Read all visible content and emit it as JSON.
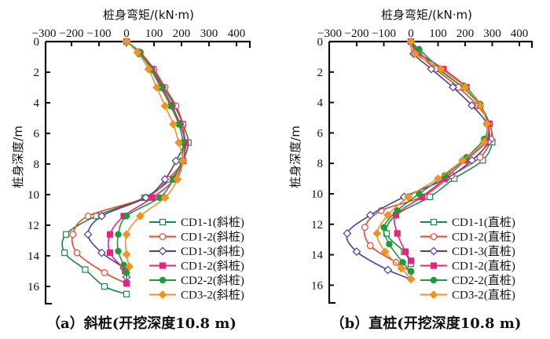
{
  "chart_data": [
    {
      "type": "line",
      "id": "a",
      "caption": "（a）斜桩(开挖深度10.8 m)",
      "xlabel": "桩身弯矩/(kN·m)",
      "ylabel": "桩身深度/m",
      "xlim": [
        -300,
        450
      ],
      "ylim": [
        0,
        17.2
      ],
      "xticks": [
        -300,
        -200,
        -100,
        0,
        100,
        200,
        300,
        400
      ],
      "yticks": [
        0,
        2,
        4,
        6,
        8,
        10,
        12,
        14,
        16
      ],
      "x_axis_position": "top",
      "y_inverted": true,
      "legend_position": "bottom-right",
      "series": [
        {
          "name": "CD1-1(斜桩)",
          "color": "#1a8a4a",
          "marker": "square-open",
          "points": [
            [
              0,
              0
            ],
            [
              50,
              0.8
            ],
            [
              95,
              1.8
            ],
            [
              135,
              3.0
            ],
            [
              175,
              4.2
            ],
            [
              205,
              5.4
            ],
            [
              225,
              6.6
            ],
            [
              205,
              7.8
            ],
            [
              160,
              9.0
            ],
            [
              65,
              10.2
            ],
            [
              -110,
              11.4
            ],
            [
              -220,
              12.6
            ],
            [
              -225,
              13.8
            ],
            [
              -150,
              14.9
            ],
            [
              -80,
              16.0
            ],
            [
              0,
              16.5
            ]
          ]
        },
        {
          "name": "CD1-2(斜桩)",
          "color": "#e8452c",
          "marker": "circle-open",
          "points": [
            [
              0,
              0
            ],
            [
              50,
              0.7
            ],
            [
              100,
              1.8
            ],
            [
              140,
              3.0
            ],
            [
              180,
              4.2
            ],
            [
              205,
              5.4
            ],
            [
              210,
              6.6
            ],
            [
              205,
              7.8
            ],
            [
              150,
              9.0
            ],
            [
              70,
              10.2
            ],
            [
              -140,
              11.4
            ],
            [
              -195,
              12.6
            ],
            [
              -180,
              13.8
            ],
            [
              -80,
              15.1
            ],
            [
              0,
              15.8
            ]
          ]
        },
        {
          "name": "CD1-3(斜桩)",
          "color": "#4a3fa0",
          "marker": "diamond-open",
          "points": [
            [
              0,
              0
            ],
            [
              45,
              0.7
            ],
            [
              90,
              1.8
            ],
            [
              130,
              3.0
            ],
            [
              165,
              4.2
            ],
            [
              195,
              5.4
            ],
            [
              210,
              6.6
            ],
            [
              180,
              7.8
            ],
            [
              140,
              9.0
            ],
            [
              70,
              10.2
            ],
            [
              -90,
              11.4
            ],
            [
              -140,
              12.6
            ],
            [
              -90,
              13.8
            ],
            [
              -10,
              14.8
            ],
            [
              0,
              15.4
            ]
          ]
        },
        {
          "name": "CD1-2(斜桩)",
          "color": "#e8237f",
          "marker": "square-filled",
          "points": [
            [
              0,
              0
            ],
            [
              45,
              0.7
            ],
            [
              92,
              1.8
            ],
            [
              130,
              3.0
            ],
            [
              165,
              4.2
            ],
            [
              195,
              5.4
            ],
            [
              215,
              6.6
            ],
            [
              205,
              7.8
            ],
            [
              175,
              9.0
            ],
            [
              95,
              10.2
            ],
            [
              -10,
              11.4
            ],
            [
              -60,
              12.6
            ],
            [
              -60,
              13.8
            ],
            [
              -5,
              15.0
            ],
            [
              0,
              15.8
            ]
          ]
        },
        {
          "name": "CD2-2(斜桩)",
          "color": "#1f9a3a",
          "marker": "circle-filled",
          "points": [
            [
              0,
              0
            ],
            [
              48,
              0.7
            ],
            [
              88,
              1.8
            ],
            [
              125,
              3.0
            ],
            [
              160,
              4.2
            ],
            [
              190,
              5.4
            ],
            [
              205,
              6.6
            ],
            [
              200,
              7.8
            ],
            [
              170,
              9.0
            ],
            [
              120,
              10.2
            ],
            [
              0,
              11.4
            ],
            [
              -30,
              12.6
            ],
            [
              -30,
              13.7
            ],
            [
              -10,
              14.6
            ],
            [
              0,
              15.1
            ]
          ]
        },
        {
          "name": "CD3-2(斜桩)",
          "color": "#f09225",
          "marker": "diamond-filled",
          "points": [
            [
              0,
              0
            ],
            [
              40,
              0.7
            ],
            [
              80,
              1.8
            ],
            [
              110,
              3.0
            ],
            [
              140,
              4.2
            ],
            [
              170,
              5.4
            ],
            [
              190,
              6.6
            ],
            [
              205,
              7.8
            ],
            [
              185,
              9.0
            ],
            [
              140,
              10.2
            ],
            [
              50,
              11.4
            ],
            [
              0,
              12.6
            ],
            [
              0,
              13.9
            ],
            [
              10,
              14.7
            ]
          ]
        }
      ]
    },
    {
      "type": "line",
      "id": "b",
      "caption": "（b）直桩(开挖深度10.8 m)",
      "xlabel": "桩身弯矩/(kN·m)",
      "ylabel": "桩身深度/m",
      "xlim": [
        -300,
        450
      ],
      "ylim": [
        0,
        17.2
      ],
      "xticks": [
        -300,
        -200,
        -100,
        0,
        100,
        200,
        300,
        400
      ],
      "yticks": [
        0,
        2,
        4,
        6,
        8,
        10,
        12,
        14,
        16
      ],
      "x_axis_position": "top",
      "y_inverted": true,
      "legend_position": "bottom-right",
      "series": [
        {
          "name": "CD1-1(直桩)",
          "color": "#1a8a4a",
          "marker": "square-open",
          "points": [
            [
              0,
              0
            ],
            [
              30,
              0.7
            ],
            [
              100,
              1.8
            ],
            [
              190,
              3.0
            ],
            [
              255,
              4.2
            ],
            [
              290,
              5.4
            ],
            [
              300,
              6.6
            ],
            [
              265,
              7.8
            ],
            [
              160,
              9.0
            ],
            [
              70,
              10.2
            ],
            [
              -55,
              11.4
            ],
            [
              -90,
              12.6
            ],
            [
              -25,
              13.8
            ],
            [
              0,
              14.6
            ]
          ]
        },
        {
          "name": "CD1-2(直桩)",
          "color": "#e8452c",
          "marker": "circle-open",
          "points": [
            [
              0,
              0
            ],
            [
              20,
              0.7
            ],
            [
              90,
              1.8
            ],
            [
              175,
              3.0
            ],
            [
              245,
              4.2
            ],
            [
              290,
              5.4
            ],
            [
              295,
              6.4
            ],
            [
              255,
              7.6
            ],
            [
              150,
              8.8
            ],
            [
              40,
              10.2
            ],
            [
              -110,
              11.1
            ],
            [
              -170,
              12.2
            ],
            [
              -150,
              13.4
            ],
            [
              -55,
              14.5
            ],
            [
              0,
              15.1
            ]
          ]
        },
        {
          "name": "CD1-3(直桩)",
          "color": "#4a3fa0",
          "marker": "diamond-open",
          "points": [
            [
              0,
              0
            ],
            [
              10,
              0.8
            ],
            [
              75,
              1.8
            ],
            [
              155,
              3.0
            ],
            [
              225,
              4.2
            ],
            [
              280,
              5.4
            ],
            [
              285,
              6.6
            ],
            [
              225,
              7.8
            ],
            [
              130,
              9.0
            ],
            [
              -25,
              10.2
            ],
            [
              -150,
              11.4
            ],
            [
              -235,
              12.6
            ],
            [
              -200,
              13.8
            ],
            [
              -85,
              15.0
            ],
            [
              0,
              15.6
            ]
          ]
        },
        {
          "name": "CD1-2(直桩)",
          "color": "#e8237f",
          "marker": "square-filled",
          "points": [
            [
              0,
              0
            ],
            [
              25,
              0.7
            ],
            [
              120,
              1.8
            ],
            [
              205,
              3.0
            ],
            [
              255,
              4.2
            ],
            [
              285,
              5.4
            ],
            [
              275,
              6.6
            ],
            [
              200,
              7.8
            ],
            [
              125,
              9.0
            ],
            [
              40,
              10.2
            ],
            [
              -55,
              11.4
            ],
            [
              -50,
              12.6
            ],
            [
              -20,
              13.8
            ],
            [
              0,
              14.4
            ]
          ]
        },
        {
          "name": "CD2-2(直桩)",
          "color": "#1f9a3a",
          "marker": "circle-filled",
          "points": [
            [
              0,
              0
            ],
            [
              30,
              0.5
            ],
            [
              110,
              1.8
            ],
            [
              195,
              2.9
            ],
            [
              255,
              4.1
            ],
            [
              280,
              5.4
            ],
            [
              270,
              6.4
            ],
            [
              205,
              7.6
            ],
            [
              125,
              8.8
            ],
            [
              30,
              10.0
            ],
            [
              -50,
              11.1
            ],
            [
              -100,
              12.2
            ],
            [
              -80,
              13.3
            ],
            [
              -30,
              14.5
            ],
            [
              0,
              15.1
            ]
          ]
        },
        {
          "name": "CD3-2(直桩)",
          "color": "#f09225",
          "marker": "diamond-filled",
          "points": [
            [
              0,
              0
            ],
            [
              15,
              0.8
            ],
            [
              110,
              1.8
            ],
            [
              200,
              3.0
            ],
            [
              255,
              4.2
            ],
            [
              280,
              5.4
            ],
            [
              270,
              6.6
            ],
            [
              190,
              7.8
            ],
            [
              100,
              9.0
            ],
            [
              -10,
              10.2
            ],
            [
              -85,
              11.4
            ],
            [
              -125,
              12.6
            ],
            [
              -95,
              13.8
            ],
            [
              -35,
              14.9
            ],
            [
              0,
              15.6
            ]
          ]
        }
      ]
    }
  ]
}
